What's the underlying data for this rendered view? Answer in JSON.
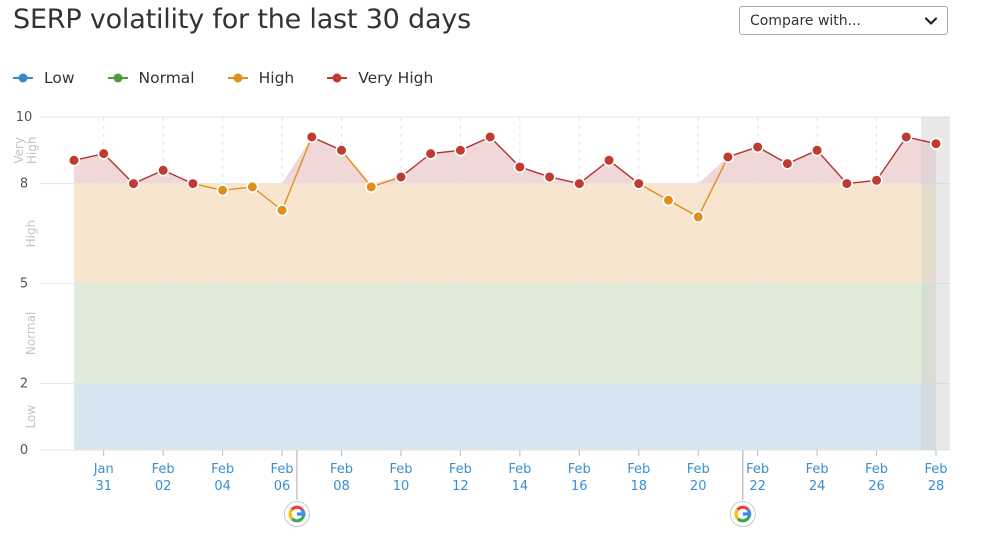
{
  "title": "SERP volatility for the last 30 days",
  "compare": {
    "label": "Compare with...",
    "icon": "chevron-down-icon"
  },
  "legend": [
    {
      "label": "Low",
      "color": "#3a87c9"
    },
    {
      "label": "Normal",
      "color": "#4e9a3a"
    },
    {
      "label": "High",
      "color": "#e0901a"
    },
    {
      "label": "Very High",
      "color": "#bf3a30"
    }
  ],
  "colors": {
    "band_low": "#d6e6f1",
    "band_normal": "#e0ebd9",
    "band_high": "#f8e5ce",
    "band_very_high": "#f1d8d8",
    "line_high": "#e0901a",
    "line_very_high": "#b03530",
    "point_high": "#e0901a",
    "point_very_high": "#bf3a30",
    "tick_x": "#3a8fd1"
  },
  "chart_data": {
    "type": "line",
    "title": "SERP volatility for the last 30 days",
    "ylim": [
      0,
      10
    ],
    "yticks": [
      0,
      2,
      5,
      8,
      10
    ],
    "bands": [
      {
        "label": "Low",
        "from": 0,
        "to": 2
      },
      {
        "label": "Normal",
        "from": 2,
        "to": 5
      },
      {
        "label": "High",
        "from": 5,
        "to": 8
      },
      {
        "label": "Very High",
        "from": 8,
        "to": 10
      }
    ],
    "x": [
      "Jan 30",
      "Jan 31",
      "Feb 01",
      "Feb 02",
      "Feb 03",
      "Feb 04",
      "Feb 05",
      "Feb 06",
      "Feb 07",
      "Feb 08",
      "Feb 09",
      "Feb 10",
      "Feb 11",
      "Feb 12",
      "Feb 13",
      "Feb 14",
      "Feb 15",
      "Feb 16",
      "Feb 17",
      "Feb 18",
      "Feb 19",
      "Feb 20",
      "Feb 21",
      "Feb 22",
      "Feb 23",
      "Feb 24",
      "Feb 25",
      "Feb 26",
      "Feb 27",
      "Feb 28"
    ],
    "values": [
      8.7,
      8.9,
      8.0,
      8.4,
      8.0,
      7.8,
      7.9,
      7.2,
      9.4,
      9.0,
      7.9,
      8.2,
      8.9,
      9.0,
      9.4,
      8.5,
      8.2,
      8.0,
      8.7,
      8.0,
      7.5,
      7.0,
      8.8,
      9.1,
      8.6,
      9.0,
      8.0,
      8.1,
      9.4,
      9.2
    ],
    "xtick_labels": [
      {
        "index": 1,
        "top": "Jan",
        "bottom": "31"
      },
      {
        "index": 3,
        "top": "Feb",
        "bottom": "02"
      },
      {
        "index": 5,
        "top": "Feb",
        "bottom": "04"
      },
      {
        "index": 7,
        "top": "Feb",
        "bottom": "06"
      },
      {
        "index": 9,
        "top": "Feb",
        "bottom": "08"
      },
      {
        "index": 11,
        "top": "Feb",
        "bottom": "10"
      },
      {
        "index": 13,
        "top": "Feb",
        "bottom": "12"
      },
      {
        "index": 15,
        "top": "Feb",
        "bottom": "14"
      },
      {
        "index": 17,
        "top": "Feb",
        "bottom": "16"
      },
      {
        "index": 19,
        "top": "Feb",
        "bottom": "18"
      },
      {
        "index": 21,
        "top": "Feb",
        "bottom": "20"
      },
      {
        "index": 23,
        "top": "Feb",
        "bottom": "22"
      },
      {
        "index": 25,
        "top": "Feb",
        "bottom": "24"
      },
      {
        "index": 27,
        "top": "Feb",
        "bottom": "26"
      },
      {
        "index": 29,
        "top": "Feb",
        "bottom": "28"
      }
    ],
    "markers": [
      {
        "x": "Feb 07",
        "icon": "google-icon"
      },
      {
        "x": "Feb 22",
        "icon": "google-icon"
      }
    ],
    "shaded_range": [
      "Feb 28",
      "Feb 28"
    ],
    "grid": true,
    "legend_position": "top-left"
  }
}
